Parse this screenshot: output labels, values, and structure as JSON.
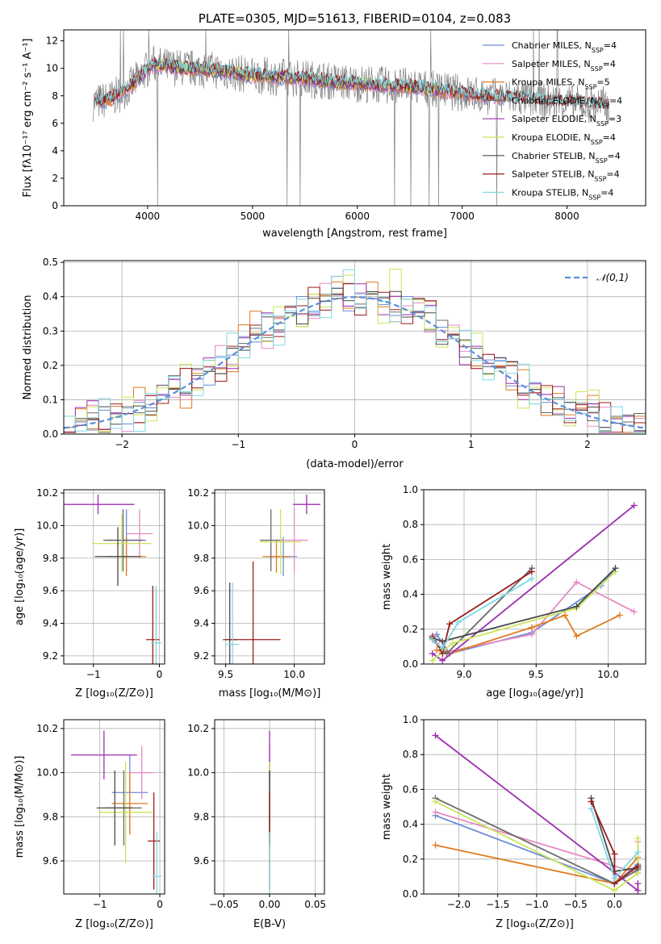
{
  "chart_data": [
    {
      "id": "spectrum",
      "type": "line",
      "title": "PLATE=0305, MJD=51613, FIBERID=0104, z=0.083",
      "xlabel": "wavelength [Angstrom, rest frame]",
      "ylabel": "Flux [fλ10⁻¹⁷ erg cm⁻² s⁻¹ A⁻¹]",
      "xlim": [
        3200,
        8750
      ],
      "ylim": [
        0,
        12.8
      ],
      "xticks": [
        4000,
        5000,
        6000,
        7000,
        8000
      ],
      "yticks": [
        0,
        2,
        4,
        6,
        8,
        10,
        12
      ],
      "grid": false,
      "legend_position": "top-right",
      "continuum": {
        "x": [
          3480,
          3550,
          3650,
          3750,
          3850,
          3950,
          4050,
          4200,
          4400,
          4600,
          4800,
          5000,
          5200,
          5400,
          5600,
          5800,
          6000,
          6200,
          6400,
          6600,
          6800,
          7000,
          7200,
          7400,
          7600,
          7800,
          8000,
          8200,
          8400
        ],
        "y": [
          7.5,
          7.6,
          7.8,
          8.2,
          8.8,
          9.6,
          10.3,
          10.1,
          10.0,
          9.9,
          9.7,
          9.5,
          9.4,
          9.3,
          9.2,
          9.0,
          8.9,
          8.8,
          8.7,
          8.6,
          8.4,
          8.2,
          8.0,
          7.9,
          7.8,
          7.6,
          7.5,
          7.4,
          7.3
        ]
      },
      "series": [
        {
          "name": "Chabrier MILES, NSSP=4",
          "color": "#6b8bd6",
          "xmin": 3540,
          "xmax": 7400
        },
        {
          "name": "Salpeter MILES, NSSP=4",
          "color": "#e78ac3",
          "xmin": 3540,
          "xmax": 7400
        },
        {
          "name": "Kroupa MILES, NSSP=5",
          "color": "#e07b1f",
          "xmin": 3540,
          "xmax": 7400
        },
        {
          "name": "Chabrier ELODIE, NSSP=4",
          "color": "#6a6a6a",
          "xmin": 3900,
          "xmax": 6800
        },
        {
          "name": "Salpeter ELODIE, NSSP=3",
          "color": "#9b2fae",
          "xmin": 3900,
          "xmax": 6800
        },
        {
          "name": "Kroupa ELODIE, NSSP=4",
          "color": "#c9e55a",
          "xmin": 3900,
          "xmax": 6800
        },
        {
          "name": "Chabrier STELIB, NSSP=4",
          "color": "#4a4a4a",
          "xmin": 3500,
          "xmax": 8400
        },
        {
          "name": "Salpeter STELIB, NSSP=4",
          "color": "#9b1c1c",
          "xmin": 3500,
          "xmax": 8400
        },
        {
          "name": "Kroupa STELIB, NSSP=4",
          "color": "#7fd8e0",
          "xmin": 3500,
          "xmax": 8400
        }
      ],
      "legend": [
        {
          "base": "Chabrier MILES, N",
          "sub": "SSP",
          "tail": "=4",
          "color": "#6b8bd6"
        },
        {
          "base": "Salpeter MILES, N",
          "sub": "SSP",
          "tail": "=4",
          "color": "#e78ac3"
        },
        {
          "base": "Kroupa MILES, N",
          "sub": "SSP",
          "tail": "=5",
          "color": "#e07b1f"
        },
        {
          "base": "Chabrier ELODIE, N",
          "sub": "SSP",
          "tail": "=4",
          "color": "#6a6a6a"
        },
        {
          "base": "Salpeter ELODIE, N",
          "sub": "SSP",
          "tail": "=3",
          "color": "#9b2fae"
        },
        {
          "base": "Kroupa ELODIE, N",
          "sub": "SSP",
          "tail": "=4",
          "color": "#c9e55a"
        },
        {
          "base": "Chabrier STELIB, N",
          "sub": "SSP",
          "tail": "=4",
          "color": "#4a4a4a"
        },
        {
          "base": "Salpeter STELIB, N",
          "sub": "SSP",
          "tail": "=4",
          "color": "#9b1c1c"
        },
        {
          "base": "Kroupa STELIB, N",
          "sub": "SSP",
          "tail": "=4",
          "color": "#7fd8e0"
        }
      ]
    },
    {
      "id": "residuals",
      "type": "line",
      "xlabel": "(data-model)/error",
      "ylabel": "Normed distribution",
      "xlim": [
        -2.5,
        2.5
      ],
      "ylim": [
        0,
        0.505
      ],
      "xticks": [
        -2,
        -1,
        0,
        1,
        2
      ],
      "yticks": [
        0.0,
        0.1,
        0.2,
        0.3,
        0.4,
        0.5
      ],
      "grid": true,
      "legend_position": "top-right",
      "reference": {
        "name": "𝒩(0,1)",
        "color": "#5b8fd9",
        "mean": 0,
        "sigma": 1
      },
      "bin_width": 0.1,
      "colors": [
        "#6b8bd6",
        "#e78ac3",
        "#e07b1f",
        "#6a6a6a",
        "#9b2fae",
        "#c9e55a",
        "#4a4a4a",
        "#9b1c1c",
        "#7fd8e0"
      ],
      "deviation": [
        0.0,
        0.01,
        -0.02,
        0.03,
        0.0,
        -0.03,
        0.02,
        -0.01,
        0.01,
        0.04,
        -0.02,
        0.01,
        -0.04,
        0.02,
        0.0,
        0.03,
        -0.01,
        -0.03,
        0.02,
        0.01,
        0.04,
        -0.02,
        0.0,
        0.03,
        -0.04,
        0.01,
        0.02,
        -0.01,
        -0.03,
        0.04,
        0.05,
        -0.02,
        0.01,
        0.0,
        -0.03,
        0.02,
        0.01,
        0.03,
        -0.02,
        0.0,
        0.03,
        -0.01,
        -0.03,
        0.02,
        0.01,
        0.04,
        -0.02,
        0.0,
        0.01,
        -0.02
      ],
      "peaks": {
        "x": 0.35,
        "y": 0.48
      }
    },
    {
      "id": "age-vs-Z",
      "type": "scatter",
      "xlabel": "Z [log₁₀(Z/Z⊙)]",
      "ylabel": "age  [log₁₀(age/yr)]",
      "xlim": [
        -1.45,
        0.08
      ],
      "ylim": [
        9.15,
        10.22
      ],
      "xticks": [
        -1,
        0
      ],
      "yticks": [
        9.2,
        9.4,
        9.6,
        9.8,
        10.0,
        10.2
      ],
      "grid": true,
      "points": [
        {
          "x": -0.5,
          "y": 9.91,
          "xerr": 0.3,
          "yerr": 0.19,
          "color": "#6b8bd6"
        },
        {
          "x": -0.3,
          "y": 9.95,
          "xerr": 0.2,
          "yerr": 0.15,
          "color": "#e78ac3"
        },
        {
          "x": -0.5,
          "y": 9.81,
          "xerr": 0.3,
          "yerr": 0.12,
          "color": "#e07b1f"
        },
        {
          "x": -0.55,
          "y": 9.91,
          "xerr": 0.3,
          "yerr": 0.19,
          "color": "#6a6a6a"
        },
        {
          "x": -0.93,
          "y": 10.13,
          "xerr": 0.55,
          "yerr": 0.06,
          "color": "#9b2fae"
        },
        {
          "x": -0.57,
          "y": 9.89,
          "xerr": 0.45,
          "yerr": 0.18,
          "color": "#c9e55a"
        },
        {
          "x": -0.63,
          "y": 9.81,
          "xerr": 0.35,
          "yerr": 0.18,
          "color": "#4a4a4a"
        },
        {
          "x": -0.1,
          "y": 9.3,
          "xerr": 0.1,
          "yerr": 0.33,
          "color": "#9b1c1c"
        },
        {
          "x": -0.05,
          "y": 9.28,
          "xerr": 0.08,
          "yerr": 0.35,
          "color": "#7fd8e0"
        }
      ]
    },
    {
      "id": "age-vs-mass",
      "type": "scatter",
      "xlabel": "mass [log₁₀(M/M⊙)]",
      "ylabel": "",
      "xlim": [
        9.42,
        10.22
      ],
      "ylim": [
        9.15,
        10.22
      ],
      "xticks": [
        9.5,
        10.0
      ],
      "yticks": [
        9.2,
        9.4,
        9.6,
        9.8,
        10.0,
        10.2
      ],
      "grid": true,
      "points": [
        {
          "x": 9.92,
          "y": 9.81,
          "xerr": 0.1,
          "yerr": 0.12,
          "color": "#6b8bd6"
        },
        {
          "x": 10.0,
          "y": 9.91,
          "xerr": 0.1,
          "yerr": 0.2,
          "color": "#e78ac3"
        },
        {
          "x": 9.87,
          "y": 9.81,
          "xerr": 0.1,
          "yerr": 0.1,
          "color": "#e07b1f"
        },
        {
          "x": 9.83,
          "y": 9.91,
          "xerr": 0.08,
          "yerr": 0.19,
          "color": "#6a6a6a"
        },
        {
          "x": 10.09,
          "y": 10.13,
          "xerr": 0.1,
          "yerr": 0.06,
          "color": "#9b2fae"
        },
        {
          "x": 9.9,
          "y": 9.9,
          "xerr": 0.15,
          "yerr": 0.2,
          "color": "#c9e55a"
        },
        {
          "x": 9.53,
          "y": 9.3,
          "xerr": 0.05,
          "yerr": 0.35,
          "color": "#4a4a4a"
        },
        {
          "x": 9.7,
          "y": 9.3,
          "xerr": 0.2,
          "yerr": 0.48,
          "color": "#9b1c1c"
        },
        {
          "x": 9.55,
          "y": 9.27,
          "xerr": 0.05,
          "yerr": 0.38,
          "color": "#7fd8e0"
        }
      ]
    },
    {
      "id": "weight-vs-age",
      "type": "line",
      "xlabel": "age  [log₁₀(age/yr)]",
      "ylabel": "mass weight",
      "xlim": [
        8.72,
        10.26
      ],
      "ylim": [
        0,
        1.0
      ],
      "xticks": [
        9.0,
        9.5,
        10.0
      ],
      "yticks": [
        0.0,
        0.2,
        0.4,
        0.6,
        0.8,
        1.0
      ],
      "grid": true,
      "series": [
        {
          "color": "#6b8bd6",
          "x": [
            8.81,
            8.9,
            9.47,
            9.95,
            10.05
          ],
          "y": [
            0.17,
            0.06,
            0.18,
            0.45,
            0.55
          ]
        },
        {
          "color": "#e78ac3",
          "x": [
            8.81,
            8.88,
            9.47,
            9.78,
            10.18
          ],
          "y": [
            0.12,
            0.07,
            0.17,
            0.47,
            0.3
          ]
        },
        {
          "color": "#e07b1f",
          "x": [
            8.81,
            8.9,
            9.47,
            9.7,
            9.78,
            10.08
          ],
          "y": [
            0.08,
            0.06,
            0.21,
            0.28,
            0.16,
            0.28
          ]
        },
        {
          "color": "#6a6a6a",
          "x": [
            8.78,
            8.88,
            9.47
          ],
          "y": [
            0.14,
            0.06,
            0.55
          ]
        },
        {
          "color": "#9b2fae",
          "x": [
            8.78,
            8.85,
            10.18
          ],
          "y": [
            0.06,
            0.02,
            0.91
          ]
        },
        {
          "color": "#c9e55a",
          "x": [
            8.78,
            8.92,
            9.78,
            10.05
          ],
          "y": [
            0.02,
            0.12,
            0.32,
            0.53
          ]
        },
        {
          "color": "#4a4a4a",
          "x": [
            8.78,
            8.85,
            9.78,
            10.05
          ],
          "y": [
            0.15,
            0.13,
            0.33,
            0.55
          ]
        },
        {
          "color": "#9b1c1c",
          "x": [
            8.78,
            8.85,
            8.9,
            9.47
          ],
          "y": [
            0.16,
            0.06,
            0.23,
            0.53
          ]
        },
        {
          "color": "#7fd8e0",
          "x": [
            8.78,
            8.85,
            8.96,
            9.47
          ],
          "y": [
            0.14,
            0.09,
            0.24,
            0.49
          ]
        }
      ]
    },
    {
      "id": "mass-vs-Z",
      "type": "scatter",
      "xlabel": "Z [log₁₀(Z/Z⊙)]",
      "ylabel": "mass [log₁₀(M/M⊙)]",
      "xlim": [
        -1.6,
        0.08
      ],
      "ylim": [
        9.45,
        10.24
      ],
      "xticks": [
        -1,
        0
      ],
      "yticks": [
        9.6,
        9.8,
        10.0,
        10.2
      ],
      "grid": true,
      "points": [
        {
          "x": -0.5,
          "y": 9.91,
          "xerr": 0.3,
          "yerr": 0.17,
          "color": "#6b8bd6"
        },
        {
          "x": -0.3,
          "y": 10.0,
          "xerr": 0.2,
          "yerr": 0.12,
          "color": "#e78ac3"
        },
        {
          "x": -0.5,
          "y": 9.86,
          "xerr": 0.3,
          "yerr": 0.14,
          "color": "#e07b1f"
        },
        {
          "x": -0.6,
          "y": 9.84,
          "xerr": 0.3,
          "yerr": 0.17,
          "color": "#6a6a6a"
        },
        {
          "x": -0.93,
          "y": 10.08,
          "xerr": 0.55,
          "yerr": 0.11,
          "color": "#9b2fae"
        },
        {
          "x": -0.57,
          "y": 9.82,
          "xerr": 0.45,
          "yerr": 0.23,
          "color": "#c9e55a"
        },
        {
          "x": -0.75,
          "y": 9.84,
          "xerr": 0.3,
          "yerr": 0.17,
          "color": "#4a4a4a"
        },
        {
          "x": -0.1,
          "y": 9.69,
          "xerr": 0.1,
          "yerr": 0.22,
          "color": "#9b1c1c"
        },
        {
          "x": -0.05,
          "y": 9.53,
          "xerr": 0.08,
          "yerr": 0.2,
          "color": "#7fd8e0"
        }
      ]
    },
    {
      "id": "mass-vs-ebv",
      "type": "scatter",
      "xlabel": "E(B-V)",
      "ylabel": "",
      "xlim": [
        -0.06,
        0.06
      ],
      "ylim": [
        9.45,
        10.24
      ],
      "xticks": [
        -0.05,
        0.0,
        0.05
      ],
      "yticks": [
        9.6,
        9.8,
        10.0,
        10.2
      ],
      "grid": true,
      "points": [
        {
          "x": 0.0,
          "y": 9.91,
          "xerr": 0.0,
          "yerr": 0.15,
          "color": "#6b8bd6"
        },
        {
          "x": 0.0,
          "y": 10.0,
          "xerr": 0.0,
          "yerr": 0.12,
          "color": "#e78ac3"
        },
        {
          "x": 0.0,
          "y": 9.86,
          "xerr": 0.0,
          "yerr": 0.14,
          "color": "#e07b1f"
        },
        {
          "x": 0.0,
          "y": 9.84,
          "xerr": 0.0,
          "yerr": 0.17,
          "color": "#6a6a6a"
        },
        {
          "x": 0.0,
          "y": 10.08,
          "xerr": 0.0,
          "yerr": 0.11,
          "color": "#9b2fae"
        },
        {
          "x": 0.0,
          "y": 9.82,
          "xerr": 0.0,
          "yerr": 0.23,
          "color": "#c9e55a"
        },
        {
          "x": 0.0,
          "y": 9.84,
          "xerr": 0.0,
          "yerr": 0.17,
          "color": "#4a4a4a"
        },
        {
          "x": 0.0,
          "y": 9.69,
          "xerr": 0.0,
          "yerr": 0.22,
          "color": "#9b1c1c"
        },
        {
          "x": 0.0,
          "y": 9.53,
          "xerr": 0.0,
          "yerr": 0.2,
          "color": "#7fd8e0"
        }
      ]
    },
    {
      "id": "weight-vs-Z",
      "type": "line",
      "xlabel": "Z [log₁₀(Z/Z⊙)]",
      "ylabel": "mass weight",
      "xlim": [
        -2.45,
        0.4
      ],
      "ylim": [
        0,
        1.0
      ],
      "xticks": [
        -2.0,
        -1.5,
        -1.0,
        -0.5,
        0.0
      ],
      "yticks": [
        0.0,
        0.2,
        0.4,
        0.6,
        0.8,
        1.0
      ],
      "grid": true,
      "series": [
        {
          "color": "#6b8bd6",
          "x": [
            -2.3,
            0.0,
            0.3
          ],
          "y": [
            0.45,
            0.06,
            0.17
          ]
        },
        {
          "color": "#e78ac3",
          "x": [
            -2.3,
            0.3,
            0.3
          ],
          "y": [
            0.47,
            0.12,
            0.3
          ]
        },
        {
          "color": "#e07b1f",
          "x": [
            -2.3,
            0.0,
            0.3,
            0.3
          ],
          "y": [
            0.28,
            0.06,
            0.21,
            0.16
          ]
        },
        {
          "color": "#6a6a6a",
          "x": [
            -2.3,
            0.0,
            0.3
          ],
          "y": [
            0.55,
            0.06,
            0.14
          ]
        },
        {
          "color": "#9b2fae",
          "x": [
            -2.3,
            0.3,
            0.3
          ],
          "y": [
            0.91,
            0.02,
            0.06
          ]
        },
        {
          "color": "#c9e55a",
          "x": [
            -2.3,
            0.0,
            0.3,
            0.3
          ],
          "y": [
            0.53,
            0.02,
            0.12,
            0.32
          ]
        },
        {
          "color": "#4a4a4a",
          "x": [
            -0.3,
            0.0,
            0.3
          ],
          "y": [
            0.55,
            0.13,
            0.15
          ]
        },
        {
          "color": "#9b1c1c",
          "x": [
            -0.3,
            0.0,
            0.0,
            0.3
          ],
          "y": [
            0.53,
            0.23,
            0.06,
            0.16
          ]
        },
        {
          "color": "#7fd8e0",
          "x": [
            -0.3,
            0.0,
            0.3
          ],
          "y": [
            0.49,
            0.09,
            0.24
          ]
        }
      ]
    }
  ]
}
